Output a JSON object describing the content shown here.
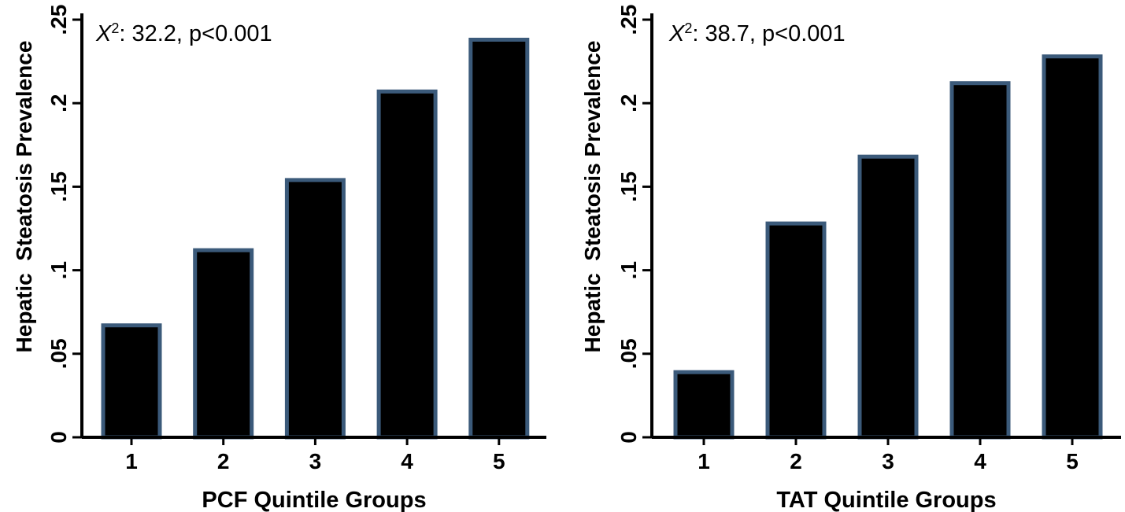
{
  "colors": {
    "bar_fill": "#000000",
    "bar_edge": "#3b5a7a",
    "axis": "#000000",
    "background": "#ffffff"
  },
  "chart_data": [
    {
      "type": "bar",
      "annotation": {
        "stat": "X",
        "sup": "2",
        "rest": ": 32.2, p<0.001"
      },
      "xlabel": "PCF Quintile Groups",
      "ylabel": "Hepatic  Steatosis Prevalence",
      "categories": [
        "1",
        "2",
        "3",
        "4",
        "5"
      ],
      "values": [
        0.067,
        0.112,
        0.154,
        0.207,
        0.238
      ],
      "ylim": [
        0,
        0.25
      ],
      "yticks": [
        0,
        0.05,
        0.1,
        0.15,
        0.2,
        0.25
      ],
      "ytick_labels": [
        "0",
        ".05",
        ".1",
        ".15",
        ".2",
        ".25"
      ],
      "grid": false
    },
    {
      "type": "bar",
      "annotation": {
        "stat": "X",
        "sup": "2",
        "rest": ": 38.7, p<0.001"
      },
      "xlabel": "TAT Quintile Groups",
      "ylabel": "Hepatic  Steatosis Prevalence",
      "categories": [
        "1",
        "2",
        "3",
        "4",
        "5"
      ],
      "values": [
        0.039,
        0.128,
        0.168,
        0.212,
        0.228
      ],
      "ylim": [
        0,
        0.25
      ],
      "yticks": [
        0,
        0.05,
        0.1,
        0.15,
        0.2,
        0.25
      ],
      "ytick_labels": [
        "0",
        ".05",
        ".1",
        ".15",
        ".2",
        ".25"
      ],
      "grid": false
    }
  ]
}
